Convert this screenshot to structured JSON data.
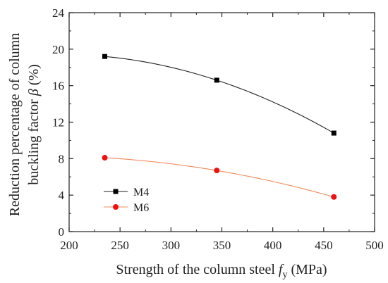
{
  "chart_data": {
    "type": "line",
    "title": "",
    "xlabel": {
      "text": "Strength of the column steel ",
      "symbol": "f",
      "subscript": "y",
      "unit": " (MPa)"
    },
    "ylabel": {
      "line1": "Reduction percentage of column",
      "line2_prefix": "buckling factor ",
      "line2_symbol": "β",
      "line2_suffix": " (%)"
    },
    "xlim": [
      200,
      500
    ],
    "ylim": [
      0,
      24
    ],
    "xticks": [
      200,
      250,
      300,
      350,
      400,
      450,
      500
    ],
    "yticks": [
      0,
      4,
      8,
      12,
      16,
      20,
      24
    ],
    "x": [
      235,
      345,
      460
    ],
    "series": [
      {
        "name": "M4",
        "values": [
          19.2,
          16.6,
          10.8
        ],
        "color": "#000000",
        "line_color": "#222222",
        "marker": "square"
      },
      {
        "name": "M6",
        "values": [
          8.1,
          6.7,
          3.8
        ],
        "color": "#ee1111",
        "line_color": "#f08a5a",
        "marker": "circle"
      }
    ],
    "legend_position": "lower-left",
    "grid": false
  }
}
